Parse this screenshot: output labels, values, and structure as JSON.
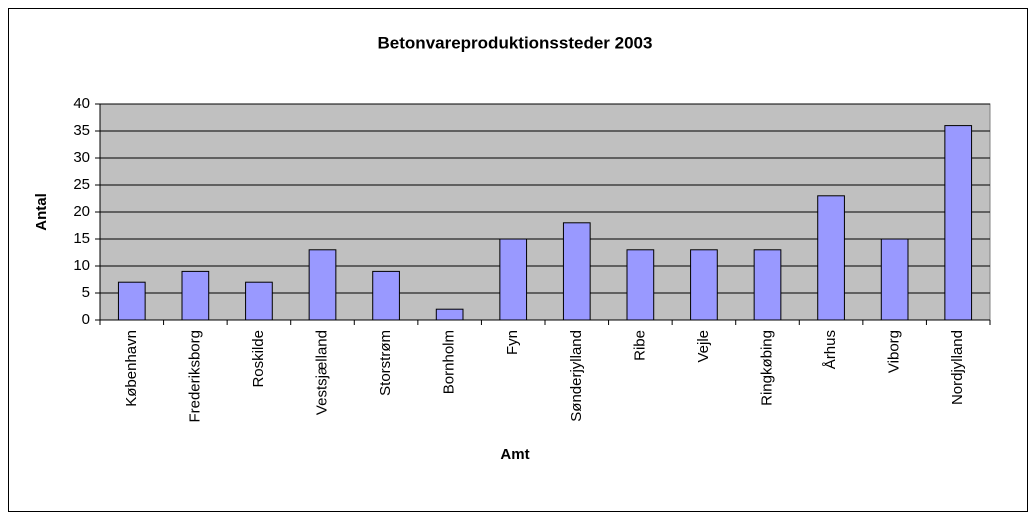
{
  "chart_data": {
    "type": "bar",
    "title": "Betonvareproduktionssteder 2003",
    "x_label": "Amt",
    "y_label": "Antal",
    "categories": [
      "København",
      "Frederiksborg",
      "Roskilde",
      "Vestsjælland",
      "Storstrøm",
      "Bornholm",
      "Fyn",
      "Sønderjylland",
      "Ribe",
      "Vejle",
      "Ringkøbing",
      "Århus",
      "Viborg",
      "Nordjylland"
    ],
    "values": [
      7,
      9,
      7,
      13,
      9,
      2,
      15,
      18,
      13,
      13,
      13,
      23,
      15,
      36
    ],
    "color": "#9999ff",
    "plot_background": "#c0c0c0",
    "ylim": [
      0,
      40
    ],
    "yticks": [
      0,
      5,
      10,
      15,
      20,
      25,
      30,
      35,
      40
    ],
    "grid": true
  }
}
